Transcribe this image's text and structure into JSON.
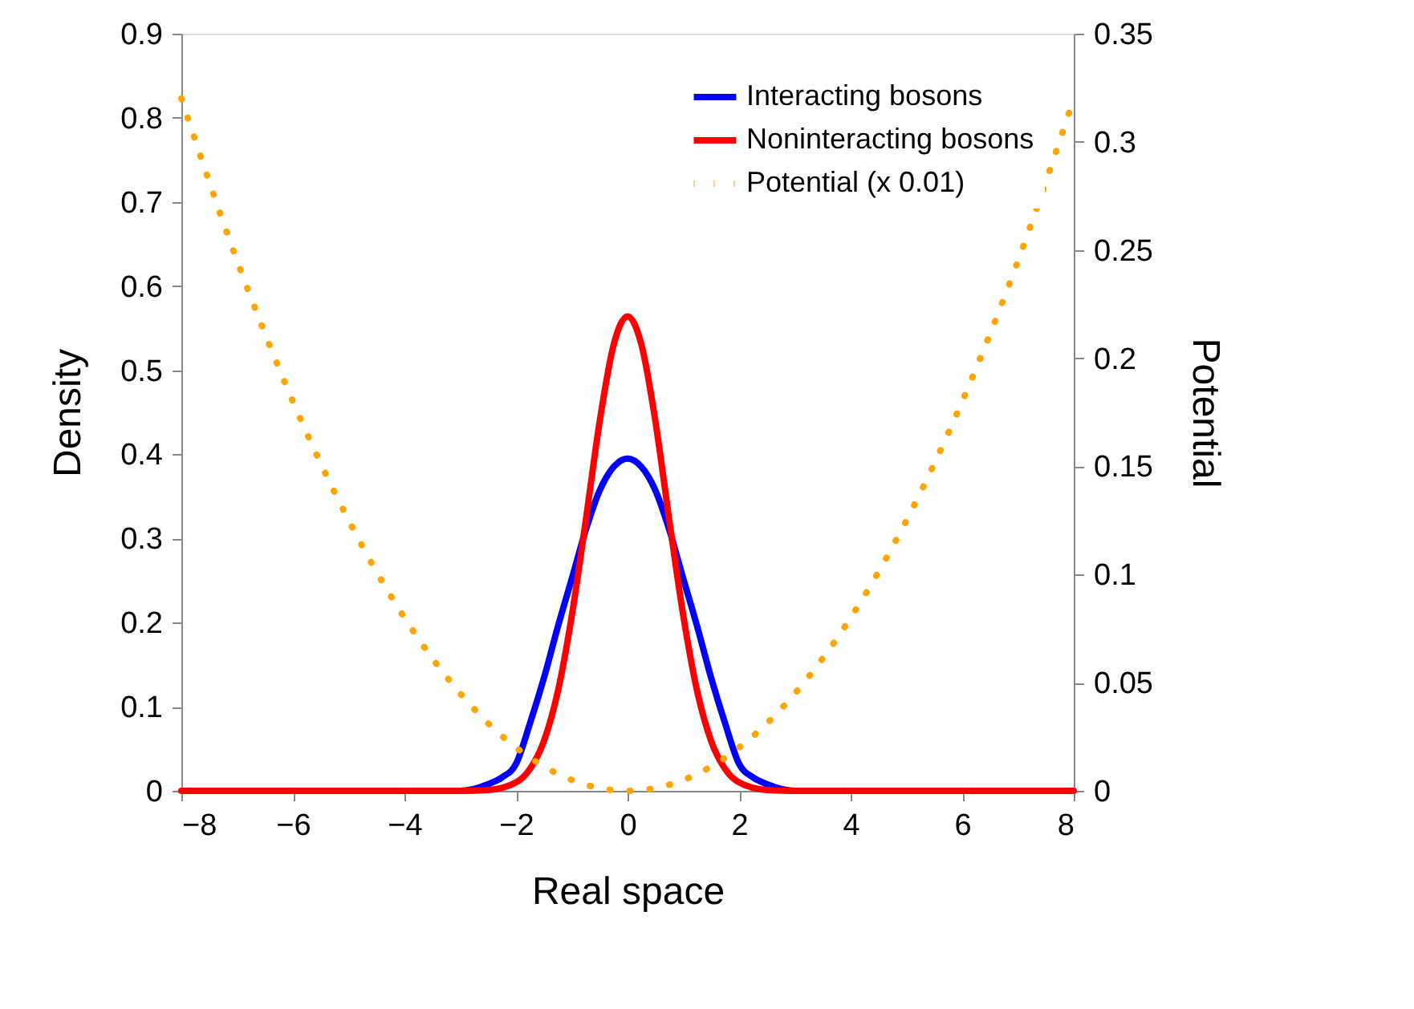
{
  "chart_data": {
    "type": "line",
    "xlabel": "Real space",
    "ylabel": "Density",
    "y2label": "Potential",
    "xlim": [
      -8,
      8
    ],
    "xticks": [
      -8,
      -6,
      -4,
      -2,
      0,
      2,
      4,
      6,
      8
    ],
    "ylim": [
      0,
      0.9
    ],
    "yticks": [
      0,
      0.1,
      0.2,
      0.3,
      0.4,
      0.5,
      0.6,
      0.7,
      0.8,
      0.9
    ],
    "y2lim": [
      0,
      0.35
    ],
    "y2ticks": [
      0,
      0.05,
      0.1,
      0.15,
      0.2,
      0.25,
      0.3,
      0.35
    ],
    "legend": "top right",
    "grid": false,
    "series": [
      {
        "name": "Interacting bosons",
        "color": "#0000ff",
        "line_style": "solid",
        "x": [
          -4,
          -3,
          -2.5,
          -2.25,
          -2,
          -1.75,
          -1.5,
          -1.25,
          -1,
          -0.75,
          -0.5,
          -0.25,
          0,
          0.25,
          0.5,
          0.75,
          1,
          1.25,
          1.5,
          1.75,
          2,
          2.25,
          2.5,
          3,
          4
        ],
        "values": [
          0,
          0,
          0.008,
          0.016,
          0.032,
          0.08,
          0.134,
          0.195,
          0.252,
          0.31,
          0.357,
          0.385,
          0.395,
          0.385,
          0.357,
          0.31,
          0.252,
          0.195,
          0.134,
          0.08,
          0.032,
          0.016,
          0.008,
          0,
          0
        ]
      },
      {
        "name": "Noninteracting bosons",
        "color": "#ff0000",
        "line_style": "solid",
        "x": [
          -8,
          -6,
          -4,
          -3,
          -2.5,
          -2,
          -1.75,
          -1.5,
          -1.25,
          -1,
          -0.75,
          -0.5,
          -0.25,
          0,
          0.25,
          0.5,
          0.75,
          1,
          1.25,
          1.5,
          1.75,
          2,
          2.5,
          3,
          4,
          6,
          8
        ],
        "values": [
          0,
          0,
          0,
          0,
          0.001,
          0.01,
          0.026,
          0.059,
          0.118,
          0.208,
          0.321,
          0.439,
          0.53,
          0.564,
          0.53,
          0.439,
          0.321,
          0.208,
          0.118,
          0.059,
          0.026,
          0.01,
          0.001,
          0,
          0,
          0,
          0
        ]
      },
      {
        "name": "Potential (x 0.01)",
        "color": "#ffa500",
        "line_style": "dotted",
        "axis": "y2",
        "x": [
          -8,
          -7,
          -6,
          -5,
          -4,
          -3,
          -2,
          -1,
          0,
          1,
          2,
          3,
          4,
          5,
          6,
          7,
          8
        ],
        "values": [
          0.32,
          0.245,
          0.18,
          0.125,
          0.08,
          0.045,
          0.02,
          0.005,
          0,
          0.005,
          0.02,
          0.045,
          0.08,
          0.125,
          0.18,
          0.245,
          0.32
        ]
      }
    ]
  }
}
